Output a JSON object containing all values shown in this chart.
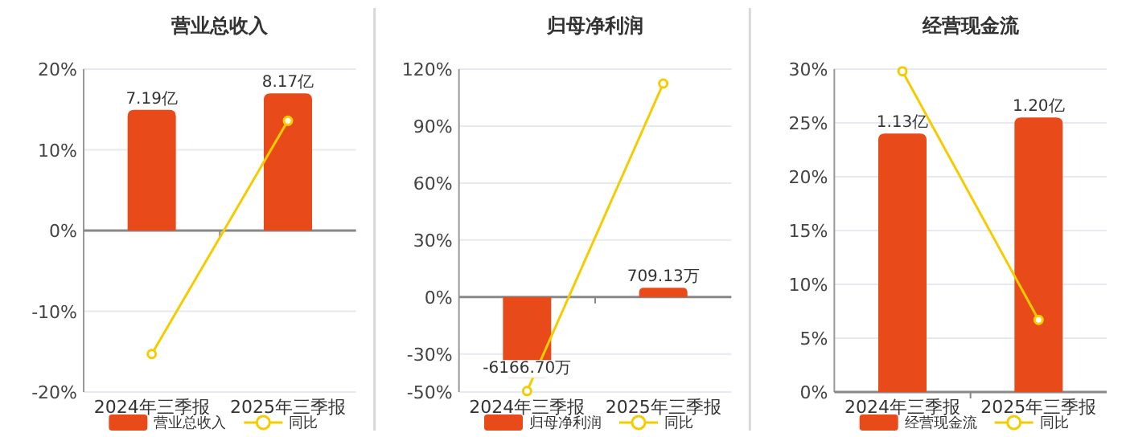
{
  "chart_data": [
    {
      "type": "bar",
      "title": "营业总收入",
      "categories": [
        "2024年三季报",
        "2025年三季报"
      ],
      "series": [
        {
          "name": "营业总收入",
          "axis": "y2",
          "color": "#e84a19",
          "values": [
            7.19,
            8.17
          ],
          "value_labels": [
            "7.19亿",
            "8.17亿"
          ]
        },
        {
          "name": "同比",
          "type": "line",
          "marker": "circle",
          "color": "#f5cc00",
          "values": [
            -15.3,
            13.6
          ]
        }
      ],
      "ylim": [
        -20,
        20
      ],
      "yticks": [
        {
          "value": -20,
          "label": "-20%"
        },
        {
          "value": -10,
          "label": "-10%"
        },
        {
          "value": 0,
          "label": "0%"
        },
        {
          "value": 10,
          "label": "10%"
        },
        {
          "value": 20,
          "label": "20%"
        }
      ],
      "tick_labels": "xy",
      "grid": "y",
      "legend": "bottom"
    },
    {
      "type": "bar",
      "title": "归母净利润",
      "categories": [
        "2024年三季报",
        "2025年三季报"
      ],
      "series": [
        {
          "name": "归母净利润",
          "axis": "y2",
          "color": "#e84a19",
          "values": [
            -6166.7,
            709.13
          ],
          "value_labels": [
            "-6166.70万",
            "709.13万"
          ]
        },
        {
          "name": "同比",
          "type": "line",
          "marker": "circle",
          "color": "#f5cc00",
          "values": [
            -49.5,
            112.4
          ]
        }
      ],
      "ylim": [
        -50,
        120
      ],
      "yticks": [
        {
          "value": -50,
          "label": "-50%"
        },
        {
          "value": -30,
          "label": "-30%"
        },
        {
          "value": 0,
          "label": "0%"
        },
        {
          "value": 30,
          "label": "30%"
        },
        {
          "value": 60,
          "label": "60%"
        },
        {
          "value": 90,
          "label": "90%"
        },
        {
          "value": 120,
          "label": "120%"
        }
      ],
      "tick_labels": "xy",
      "grid": "y",
      "legend": "bottom"
    },
    {
      "type": "bar",
      "title": "经营现金流",
      "categories": [
        "2024年三季报",
        "2025年三季报"
      ],
      "series": [
        {
          "name": "经营现金流",
          "axis": "y2",
          "color": "#e84a19",
          "values": [
            1.13,
            1.2
          ],
          "value_labels": [
            "1.13亿",
            "1.20亿"
          ]
        },
        {
          "name": "同比",
          "type": "line",
          "marker": "circle",
          "color": "#f5cc00",
          "values": [
            29.8,
            6.7
          ]
        }
      ],
      "ylim": [
        0,
        30
      ],
      "yticks": [
        {
          "value": 0,
          "label": "0%"
        },
        {
          "value": 5,
          "label": "5%"
        },
        {
          "value": 10,
          "label": "10%"
        },
        {
          "value": 15,
          "label": "15%"
        },
        {
          "value": 20,
          "label": "20%"
        },
        {
          "value": 25,
          "label": "25%"
        },
        {
          "value": 30,
          "label": "30%"
        }
      ],
      "tick_labels": "xy",
      "grid": "y",
      "legend": "bottom"
    }
  ]
}
